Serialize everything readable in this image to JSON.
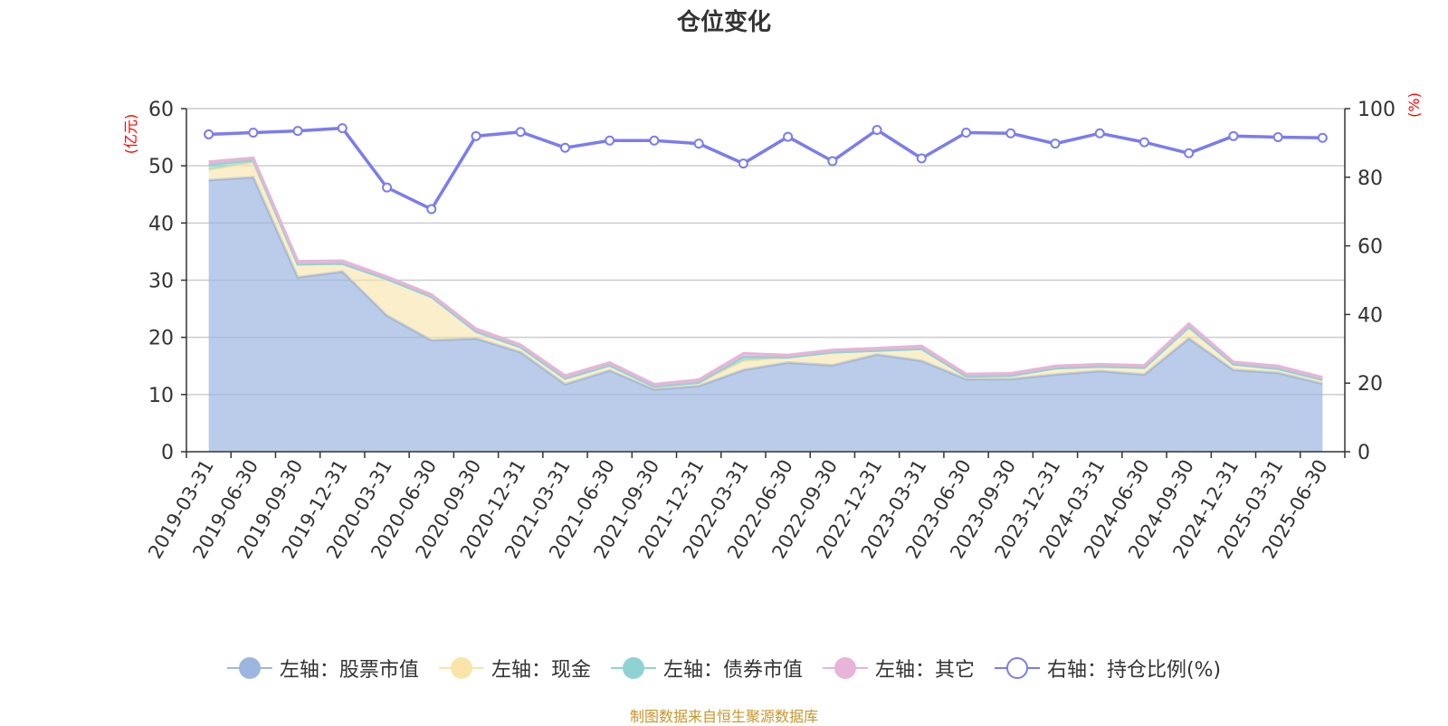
{
  "chart_data": {
    "type": "area",
    "title": "仓位变化",
    "y_left_unit": "(亿元)",
    "y_right_unit": "(%)",
    "ylim_left": [
      0,
      60
    ],
    "yticks_left": [
      0,
      10,
      20,
      30,
      40,
      50,
      60
    ],
    "ylim_right": [
      0,
      100
    ],
    "yticks_right": [
      0,
      20,
      40,
      60,
      80,
      100
    ],
    "grid": true,
    "legend_position": "bottom",
    "categories": [
      "2019-03-31",
      "2019-06-30",
      "2019-09-30",
      "2019-12-31",
      "2020-03-31",
      "2020-06-30",
      "2020-09-30",
      "2020-12-31",
      "2021-03-31",
      "2021-06-30",
      "2021-09-30",
      "2021-12-31",
      "2022-03-31",
      "2022-06-30",
      "2022-09-30",
      "2022-12-31",
      "2023-03-31",
      "2023-06-30",
      "2023-09-30",
      "2023-12-31",
      "2024-03-31",
      "2024-06-30",
      "2024-09-30",
      "2024-12-31",
      "2025-03-31",
      "2025-06-30"
    ],
    "series": [
      {
        "name": "左轴：股票市值",
        "axis": "left",
        "kind": "stacked-area",
        "color": "#9db6e0",
        "values": [
          47.5,
          48,
          30.5,
          31.5,
          23.8,
          19.5,
          19.8,
          17.4,
          11.8,
          14.2,
          10.9,
          11.5,
          14.3,
          15.6,
          15.1,
          17,
          15.9,
          12.7,
          12.7,
          13.5,
          14.1,
          13.5,
          19.8,
          14.3,
          13.8,
          11.9
        ]
      },
      {
        "name": "左轴：现金",
        "axis": "left",
        "kind": "stacked-area",
        "color": "#f9e5a9",
        "values": [
          1.8,
          2.6,
          2.3,
          1.4,
          6.4,
          7.6,
          1.2,
          0.9,
          1,
          0.9,
          0.5,
          0.6,
          1.6,
          0.9,
          2.3,
          0.7,
          2.1,
          0.5,
          0.6,
          1.1,
          0.8,
          1.2,
          2,
          1,
          0.7,
          0.7
        ]
      },
      {
        "name": "左轴：债券市值",
        "axis": "left",
        "kind": "stacked-area",
        "color": "#90d2d2",
        "values": [
          0.9,
          0.4,
          0,
          0,
          0,
          0,
          0,
          0,
          0,
          0,
          0,
          0,
          0.7,
          0,
          0,
          0,
          0,
          0,
          0,
          0,
          0,
          0,
          0,
          0,
          0,
          0
        ]
      },
      {
        "name": "左轴：其它",
        "axis": "left",
        "kind": "stacked-area",
        "color": "#e8b4d8",
        "values": [
          0.5,
          0.4,
          0.5,
          0.5,
          0.4,
          0.4,
          0.5,
          0.4,
          0.5,
          0.5,
          0.4,
          0.5,
          0.6,
          0.4,
          0.4,
          0.4,
          0.5,
          0.4,
          0.4,
          0.4,
          0.4,
          0.4,
          0.6,
          0.4,
          0.5,
          0.4
        ]
      },
      {
        "name": "右轴：持仓比例(%)",
        "axis": "right",
        "kind": "line",
        "color": "#7b7cee",
        "values": [
          92.5,
          93,
          93.5,
          94.3,
          77,
          70.7,
          92,
          93.2,
          88.6,
          90.7,
          90.7,
          89.8,
          84,
          91.8,
          84.7,
          93.8,
          85.5,
          93,
          92.8,
          89.8,
          92.8,
          90.2,
          87,
          92,
          91.7,
          91.5
        ]
      }
    ]
  },
  "source": "制图数据来自恒生聚源数据库"
}
